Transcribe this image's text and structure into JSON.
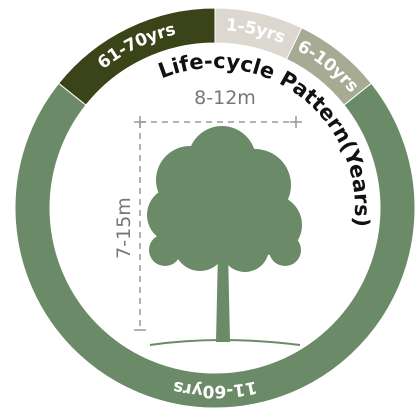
{
  "chart_data": {
    "type": "donut",
    "title": "Life-cycle Pattern(Years)",
    "categories": [
      "1-5yrs",
      "6-10yrs",
      "11-60yrs",
      "61-70yrs"
    ],
    "values": [
      5,
      5,
      50,
      10
    ],
    "colors": [
      "#dcd8d0",
      "#a8ab94",
      "#6b8a67",
      "#3b4319"
    ],
    "width_label": "8-12m",
    "height_label": "7-15m"
  }
}
